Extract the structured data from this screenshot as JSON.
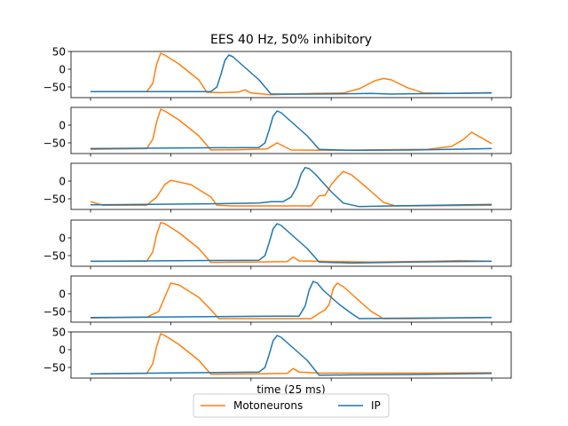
{
  "colors": {
    "motoneurons": "#ff7f0e",
    "ip": "#1f77b4",
    "axis": "#000000",
    "legend_border": "#cccccc"
  },
  "chart_data": {
    "type": "line",
    "title": "EES 40 Hz, 50% inhibitory",
    "xlabel": "time (25 ms)",
    "xlim": [
      0,
      100
    ],
    "legend": {
      "placement": "bottom-center",
      "columns": 2,
      "entries": [
        "Motoneurons",
        "IP"
      ]
    },
    "grid": false,
    "series_names": [
      "Motoneurons",
      "IP"
    ],
    "panels": [
      {
        "ylim": [
          -80,
          50
        ],
        "yticks": [
          50,
          0,
          -50
        ],
        "series": [
          {
            "name": "Motoneurons",
            "x": [
              0,
              14,
              15.5,
              16.5,
              17.5,
              18.5,
              22,
              27,
              29,
              33,
              37,
              38.5,
              40,
              45,
              55,
              63,
              67,
              71,
              73,
              75,
              79,
              83,
              90,
              100
            ],
            "y": [
              -63,
              -63,
              -40,
              15,
              45,
              40,
              15,
              -30,
              -65,
              -66,
              -64,
              -58,
              -67,
              -72,
              -68,
              -67,
              -55,
              -32,
              -26,
              -30,
              -52,
              -67,
              -68,
              -66
            ]
          },
          {
            "name": "IP",
            "x": [
              0,
              30,
              31.5,
              32.5,
              33.5,
              34.5,
              35.5,
              37,
              42,
              45,
              55,
              65,
              70,
              75,
              80,
              100
            ],
            "y": [
              -63,
              -63,
              -50,
              -15,
              25,
              40,
              35,
              20,
              -30,
              -70,
              -70,
              -69,
              -68,
              -70,
              -69,
              -67
            ]
          }
        ]
      },
      {
        "ylim": [
          -80,
          50
        ],
        "yticks": [
          0,
          -50
        ],
        "series": [
          {
            "name": "Motoneurons",
            "x": [
              0,
              14,
              15.5,
              16.5,
              17.5,
              18.5,
              22,
              27,
              30,
              38,
              44,
              46.5,
              50,
              60,
              75,
              84,
              90,
              93,
              95,
              100
            ],
            "y": [
              -68,
              -66,
              -40,
              10,
              45,
              40,
              15,
              -30,
              -70,
              -69,
              -67,
              -50,
              -70,
              -71,
              -69,
              -68,
              -60,
              -40,
              -20,
              -52
            ]
          },
          {
            "name": "IP",
            "x": [
              0,
              42,
              43.5,
              44.5,
              45.5,
              46.5,
              47.5,
              49,
              54,
              57,
              65,
              80,
              100
            ],
            "y": [
              -66,
              -63,
              -50,
              -15,
              25,
              40,
              35,
              20,
              -30,
              -68,
              -71,
              -70,
              -66
            ]
          }
        ]
      },
      {
        "ylim": [
          -80,
          50
        ],
        "yticks": [
          0,
          -50
        ],
        "series": [
          {
            "name": "Motoneurons",
            "x": [
              0,
              3,
              14,
              16.5,
              18.5,
              20,
              25,
              30,
              31.5,
              35,
              43,
              55,
              56.5,
              57,
              58.5,
              60,
              61.5,
              63,
              65,
              69,
              73,
              76,
              80,
              100
            ],
            "y": [
              -58,
              -68,
              -68,
              -45,
              -10,
              2,
              -10,
              -45,
              -68,
              -70,
              -70,
              -70,
              -48,
              -42,
              -40,
              -10,
              10,
              27,
              18,
              -20,
              -60,
              -70,
              -70,
              -68
            ]
          },
          {
            "name": "IP",
            "x": [
              0,
              30,
              42,
              45,
              48,
              50,
              51.5,
              52.5,
              53.5,
              54.5,
              56,
              60,
              63,
              67,
              75,
              100
            ],
            "y": [
              -67,
              -64,
              -62,
              -58,
              -58,
              -45,
              -15,
              20,
              38,
              35,
              20,
              -30,
              -62,
              -72,
              -70,
              -66
            ]
          }
        ]
      },
      {
        "ylim": [
          -80,
          50
        ],
        "yticks": [
          0,
          -50
        ],
        "series": [
          {
            "name": "Motoneurons",
            "x": [
              0,
              14,
              15.5,
              16.5,
              17.5,
              18.5,
              22,
              27,
              30,
              40,
              49,
              50.5,
              52,
              57,
              70,
              85,
              92,
              100
            ],
            "y": [
              -66,
              -66,
              -40,
              10,
              43,
              40,
              15,
              -30,
              -69,
              -68,
              -67,
              -54,
              -65,
              -66,
              -68,
              -66,
              -64,
              -66
            ]
          },
          {
            "name": "IP",
            "x": [
              0,
              42,
              43.5,
              44.5,
              45.5,
              46.5,
              47.5,
              49,
              54,
              57,
              65,
              80,
              100
            ],
            "y": [
              -66,
              -63,
              -50,
              -15,
              25,
              40,
              35,
              20,
              -30,
              -68,
              -71,
              -68,
              -66
            ]
          }
        ]
      },
      {
        "ylim": [
          -80,
          50
        ],
        "yticks": [
          0,
          -50
        ],
        "series": [
          {
            "name": "Motoneurons",
            "x": [
              0,
              14,
              17,
              18.5,
              20,
              22,
              27,
              30,
              32,
              55,
              57,
              58.5,
              59.5,
              60.5,
              61.5,
              63,
              67,
              70,
              73,
              80,
              100
            ],
            "y": [
              -68,
              -66,
              -50,
              -10,
              30,
              25,
              -10,
              -45,
              -70,
              -70,
              -55,
              -45,
              -30,
              15,
              30,
              20,
              -20,
              -50,
              -70,
              -70,
              -67
            ]
          },
          {
            "name": "IP",
            "x": [
              0,
              45,
              52,
              53.5,
              54.5,
              55.5,
              56.5,
              58,
              62,
              65,
              67,
              75,
              100
            ],
            "y": [
              -67,
              -63,
              -63,
              -35,
              10,
              35,
              30,
              10,
              -30,
              -55,
              -70,
              -69,
              -67
            ]
          }
        ]
      },
      {
        "ylim": [
          -80,
          50
        ],
        "yticks": [
          50,
          0,
          -50
        ],
        "series": [
          {
            "name": "Motoneurons",
            "x": [
              0,
              14,
              15.5,
              16.5,
              17.5,
              18.5,
              22,
              27,
              30,
              40,
              49,
              50.5,
              52,
              57,
              70,
              85,
              100
            ],
            "y": [
              -68,
              -67,
              -40,
              10,
              45,
              40,
              15,
              -30,
              -69,
              -68,
              -67,
              -53,
              -63,
              -66,
              -66,
              -66,
              -65
            ]
          },
          {
            "name": "IP",
            "x": [
              0,
              42,
              43.5,
              44.5,
              45.5,
              46.5,
              47.5,
              49,
              54,
              57,
              65,
              80,
              100
            ],
            "y": [
              -68,
              -63,
              -50,
              -15,
              25,
              40,
              35,
              20,
              -30,
              -72,
              -71,
              -70,
              -67
            ]
          }
        ]
      }
    ]
  }
}
